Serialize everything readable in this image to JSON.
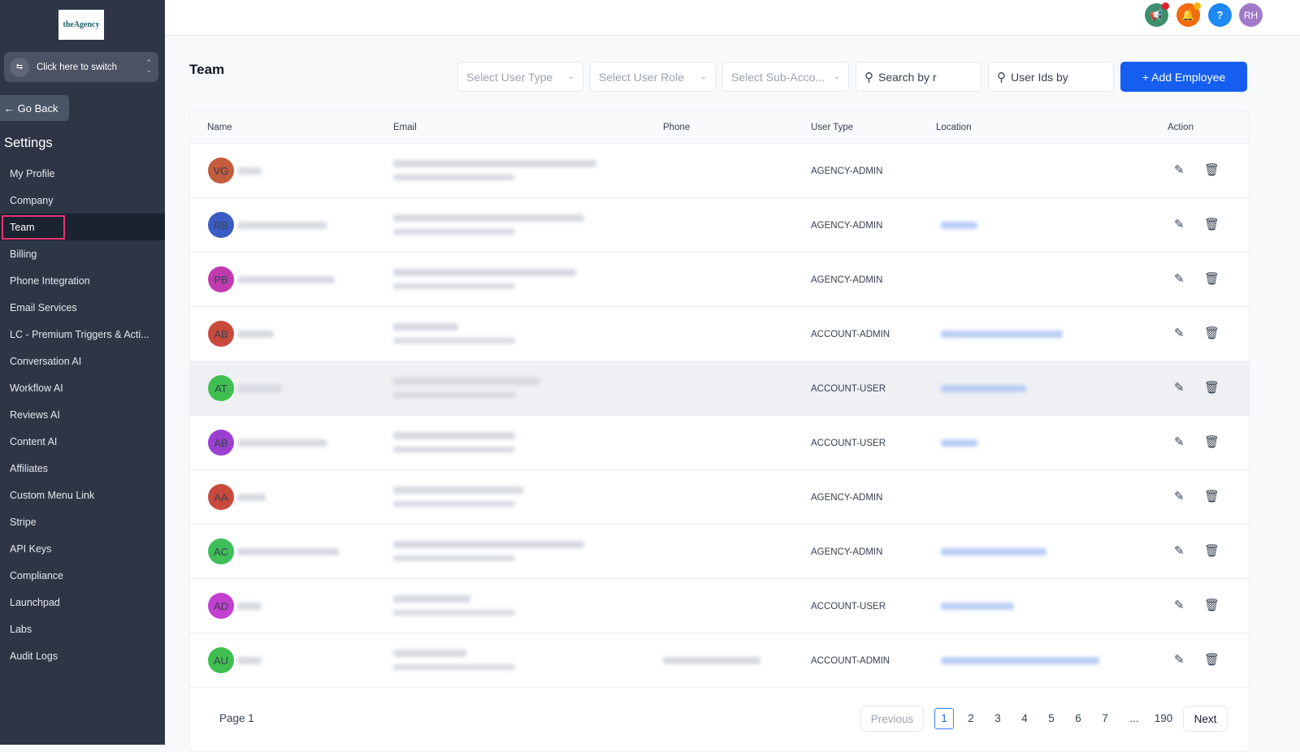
{
  "sidebar": {
    "logo_text": "theAgency",
    "switcher_label": "Click here to switch",
    "go_back": "Go Back",
    "section_title": "Settings",
    "items": [
      {
        "label": "My Profile"
      },
      {
        "label": "Company"
      },
      {
        "label": "Team",
        "active": true
      },
      {
        "label": "Billing"
      },
      {
        "label": "Phone Integration"
      },
      {
        "label": "Email Services"
      },
      {
        "label": "LC - Premium Triggers & Acti..."
      },
      {
        "label": "Conversation AI"
      },
      {
        "label": "Workflow AI"
      },
      {
        "label": "Reviews AI"
      },
      {
        "label": "Content AI"
      },
      {
        "label": "Affiliates"
      },
      {
        "label": "Custom Menu Link"
      },
      {
        "label": "Stripe"
      },
      {
        "label": "API Keys"
      },
      {
        "label": "Compliance"
      },
      {
        "label": "Launchpad"
      },
      {
        "label": "Labs"
      },
      {
        "label": "Audit Logs"
      }
    ]
  },
  "topbar": {
    "announce_icon": "megaphone-icon",
    "announce_color": "#3d8f6e",
    "bell_icon": "bell-icon",
    "bell_color": "#f26b0f",
    "help_label": "?",
    "help_color": "#1e88f5",
    "user_initials": "RH",
    "user_color": "#a07ac8"
  },
  "main": {
    "title": "Team",
    "filters": {
      "user_type": "Select User Type",
      "user_role": "Select User Role",
      "sub_account": "Select Sub-Acco...",
      "search": "Search by r",
      "user_ids": "User Ids by"
    },
    "add_button": "+ Add Employee",
    "columns": [
      "Name",
      "Email",
      "Phone",
      "User Type",
      "Location",
      "Action"
    ],
    "rows": [
      {
        "initials": "VG",
        "color": "#c45c3e",
        "user_type": "AGENCY-ADMIN",
        "location": false,
        "phone": false
      },
      {
        "initials": "RB",
        "color": "#3b5cc4",
        "user_type": "AGENCY-ADMIN",
        "location": true,
        "phone": false
      },
      {
        "initials": "PB",
        "color": "#c13bb0",
        "user_type": "AGENCY-ADMIN",
        "location": false,
        "phone": false
      },
      {
        "initials": "AB",
        "color": "#c94a3c",
        "user_type": "ACCOUNT-ADMIN",
        "location": true,
        "phone": false
      },
      {
        "initials": "AT",
        "color": "#3fbf4f",
        "user_type": "ACCOUNT-USER",
        "location": true,
        "phone": false,
        "highlight": true
      },
      {
        "initials": "AB",
        "color": "#9a3fd0",
        "user_type": "ACCOUNT-USER",
        "location": true,
        "phone": false
      },
      {
        "initials": "AA",
        "color": "#c94a3c",
        "user_type": "AGENCY-ADMIN",
        "location": false,
        "phone": false
      },
      {
        "initials": "AC",
        "color": "#3fbf5a",
        "user_type": "AGENCY-ADMIN",
        "location": true,
        "phone": false
      },
      {
        "initials": "AD",
        "color": "#c33fd0",
        "user_type": "ACCOUNT-USER",
        "location": true,
        "phone": false
      },
      {
        "initials": "AU",
        "color": "#3fbf4f",
        "user_type": "ACCOUNT-ADMIN",
        "location": true,
        "phone": true
      }
    ],
    "pagination": {
      "page_label": "Page 1",
      "previous": "Previous",
      "next": "Next",
      "pages": [
        "1",
        "2",
        "3",
        "4",
        "5",
        "6",
        "7",
        "...",
        "190"
      ],
      "current": "1"
    }
  }
}
